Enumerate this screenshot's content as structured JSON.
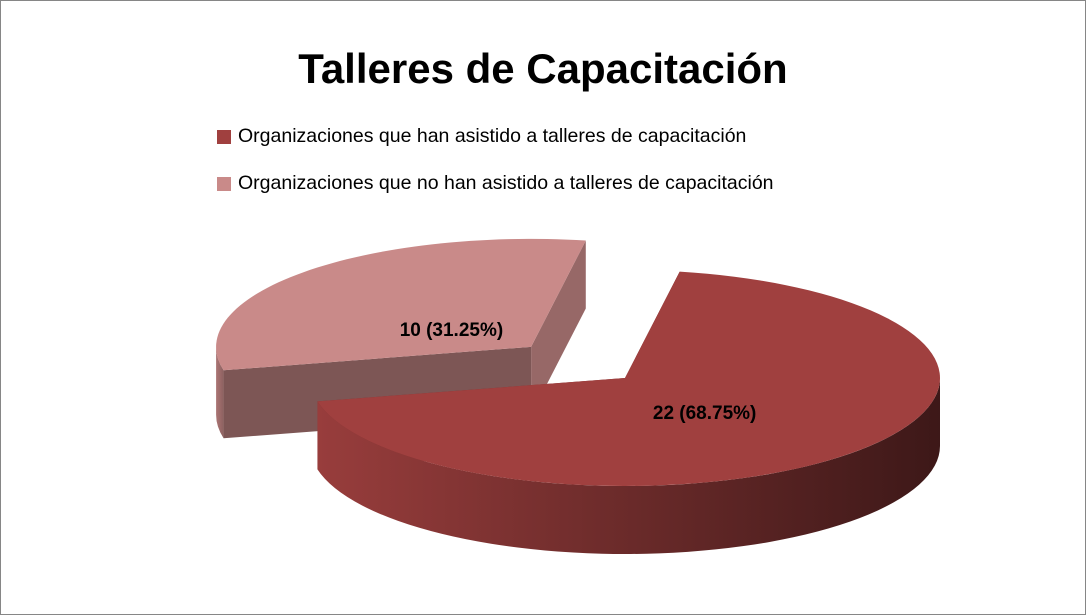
{
  "chart_data": {
    "type": "pie3d",
    "title": "Talleres de Capacitación",
    "categories": [
      "Organizaciones que han asistido a talleres de capacitación",
      "Organizaciones que no han asistido a talleres de capacitación"
    ],
    "values": [
      22,
      10
    ],
    "value_labels": [
      "22 (68.75%)",
      "10 (31.25%)"
    ],
    "colors": [
      "#a0403f",
      "#c98a89"
    ],
    "legend": "top"
  }
}
